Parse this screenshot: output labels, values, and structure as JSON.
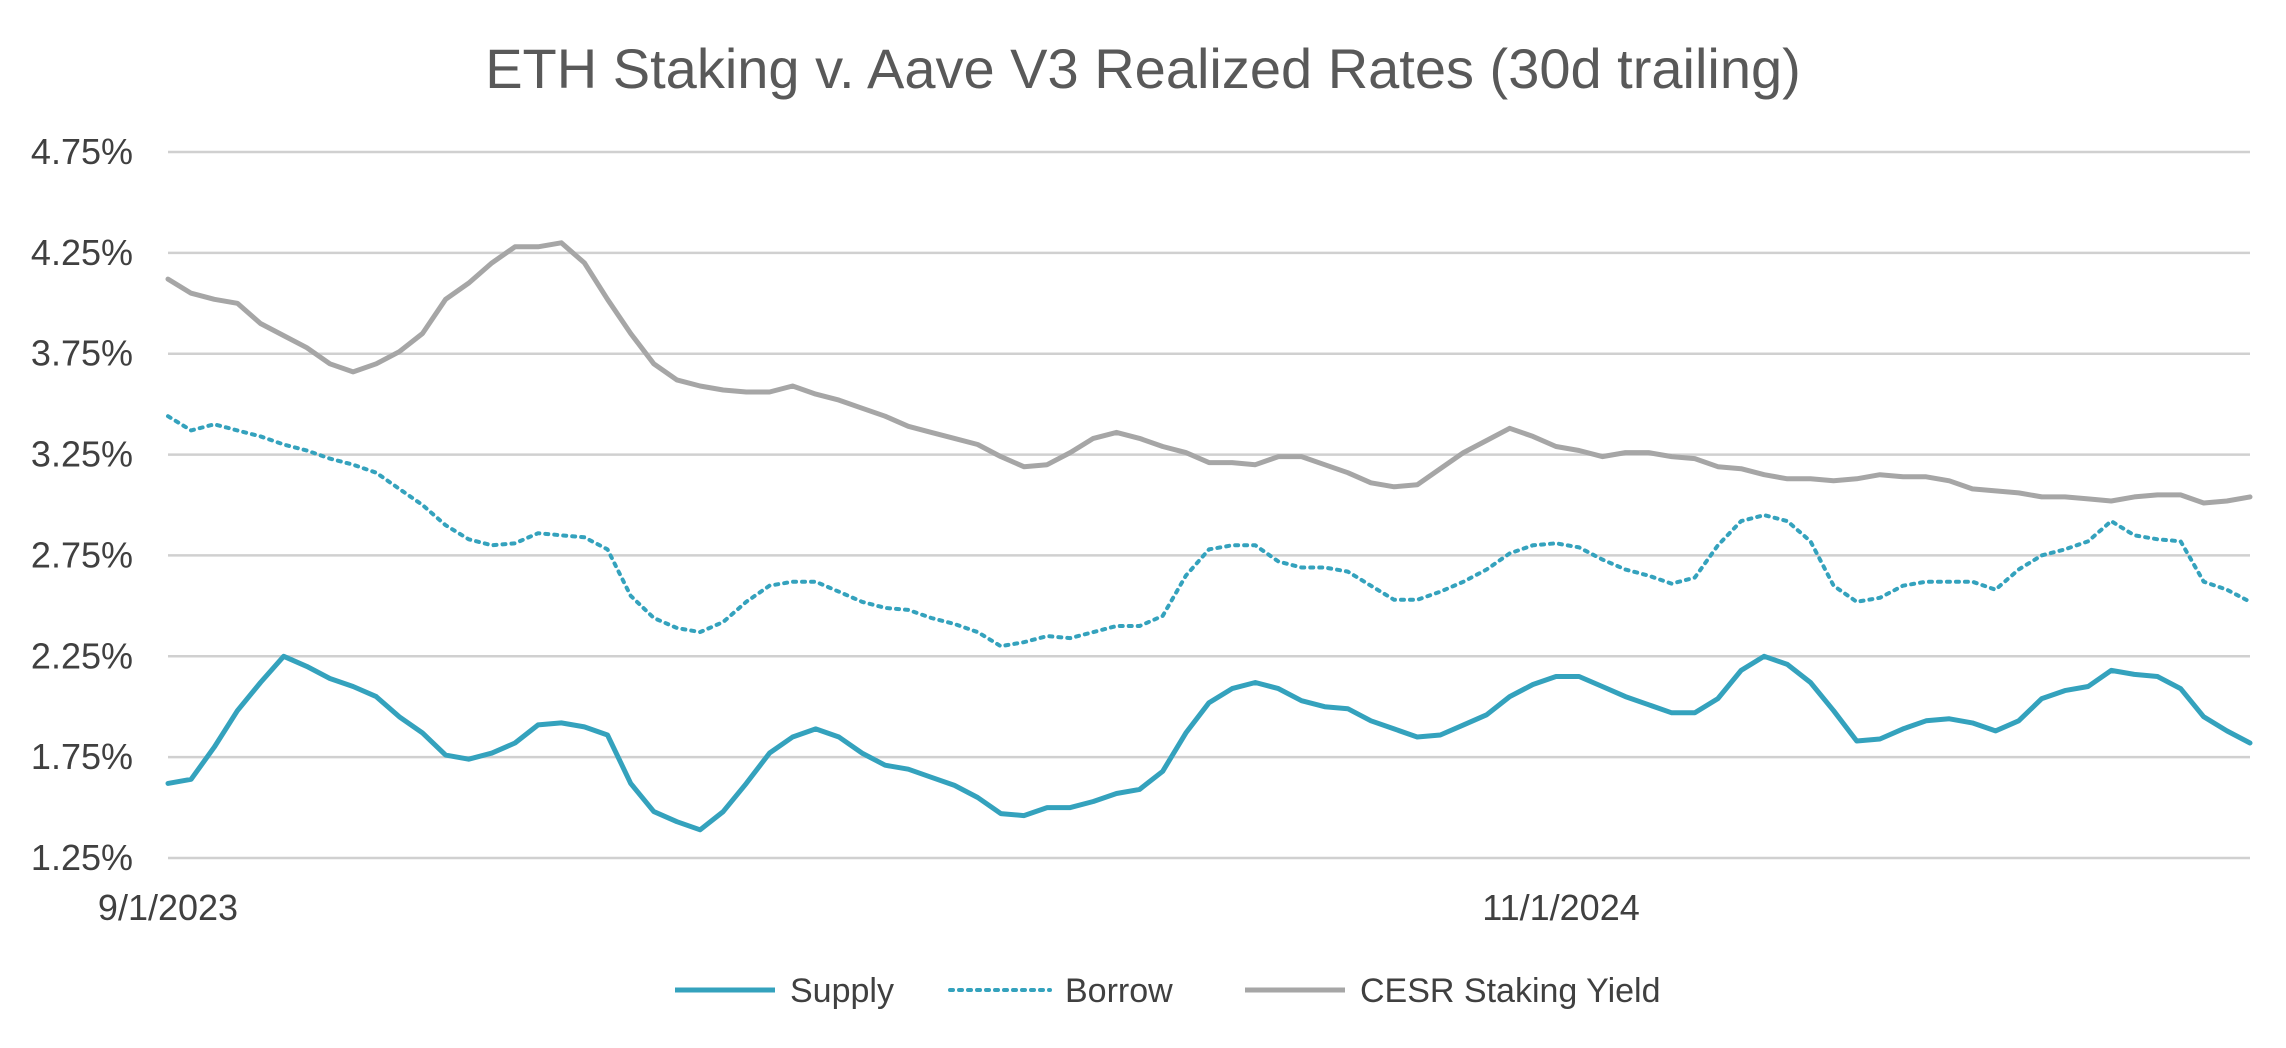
{
  "chart_data": {
    "type": "line",
    "title": "ETH Staking v. Aave V3 Realized Rates (30d trailing)",
    "xlabel": "",
    "ylabel": "",
    "x_start": "9/1/2023",
    "x_end": "2/28/2025",
    "x_tick_labels": [
      "9/1/2023",
      "11/1/2024"
    ],
    "ylim": [
      1.25,
      4.75
    ],
    "y_tick_values": [
      1.25,
      1.75,
      2.25,
      2.75,
      3.25,
      3.75,
      4.25,
      4.75
    ],
    "y_tick_labels": [
      "1.25%",
      "1.75%",
      "2.25%",
      "2.75%",
      "3.25%",
      "3.75%",
      "4.25%",
      "4.75%"
    ],
    "grid": true,
    "legend_position": "bottom",
    "series": [
      {
        "name": "Supply",
        "style": "solid",
        "color": "#34A2BD",
        "values": [
          1.62,
          1.64,
          1.8,
          1.98,
          2.12,
          2.25,
          2.2,
          2.14,
          2.1,
          2.05,
          1.95,
          1.87,
          1.76,
          1.74,
          1.77,
          1.82,
          1.91,
          1.92,
          1.9,
          1.86,
          1.62,
          1.48,
          1.43,
          1.39,
          1.48,
          1.62,
          1.77,
          1.85,
          1.89,
          1.85,
          1.77,
          1.71,
          1.69,
          1.65,
          1.61,
          1.55,
          1.47,
          1.46,
          1.5,
          1.5,
          1.53,
          1.57,
          1.59,
          1.68,
          1.87,
          2.02,
          2.09,
          2.12,
          2.09,
          2.03,
          2.0,
          1.99,
          1.93,
          1.89,
          1.85,
          1.86,
          1.91,
          1.96,
          2.05,
          2.11,
          2.15,
          2.15,
          2.1,
          2.05,
          2.01,
          1.97,
          1.97,
          2.04,
          2.18,
          2.25,
          2.21,
          2.12,
          1.98,
          1.83,
          1.84,
          1.89,
          1.93,
          1.94,
          1.92,
          1.88,
          1.93,
          2.04,
          2.08,
          2.1,
          2.18,
          2.16,
          2.15,
          2.09,
          1.95,
          1.88,
          1.82
        ]
      },
      {
        "name": "Borrow",
        "style": "dotted",
        "color": "#34A2BD",
        "values": [
          3.44,
          3.37,
          3.4,
          3.37,
          3.34,
          3.3,
          3.27,
          3.23,
          3.2,
          3.16,
          3.08,
          3.0,
          2.9,
          2.83,
          2.8,
          2.81,
          2.86,
          2.85,
          2.84,
          2.78,
          2.55,
          2.44,
          2.39,
          2.37,
          2.42,
          2.52,
          2.6,
          2.62,
          2.62,
          2.57,
          2.52,
          2.49,
          2.48,
          2.44,
          2.41,
          2.37,
          2.3,
          2.32,
          2.35,
          2.34,
          2.37,
          2.4,
          2.4,
          2.45,
          2.65,
          2.78,
          2.8,
          2.8,
          2.72,
          2.69,
          2.69,
          2.67,
          2.6,
          2.53,
          2.53,
          2.57,
          2.62,
          2.68,
          2.76,
          2.8,
          2.81,
          2.79,
          2.73,
          2.68,
          2.65,
          2.61,
          2.64,
          2.8,
          2.92,
          2.95,
          2.92,
          2.82,
          2.6,
          2.52,
          2.54,
          2.6,
          2.62,
          2.62,
          2.62,
          2.58,
          2.68,
          2.75,
          2.78,
          2.82,
          2.92,
          2.85,
          2.83,
          2.82,
          2.62,
          2.58,
          2.52
        ]
      },
      {
        "name": "CESR Staking Yield",
        "style": "solid",
        "color": "#A6A6A6",
        "values": [
          4.12,
          4.05,
          4.02,
          4.0,
          3.9,
          3.84,
          3.78,
          3.7,
          3.66,
          3.7,
          3.76,
          3.85,
          4.02,
          4.1,
          4.2,
          4.28,
          4.28,
          4.3,
          4.2,
          4.02,
          3.85,
          3.7,
          3.62,
          3.59,
          3.57,
          3.56,
          3.56,
          3.59,
          3.55,
          3.52,
          3.48,
          3.44,
          3.39,
          3.36,
          3.33,
          3.3,
          3.24,
          3.19,
          3.2,
          3.26,
          3.33,
          3.36,
          3.33,
          3.29,
          3.26,
          3.21,
          3.21,
          3.2,
          3.24,
          3.24,
          3.2,
          3.16,
          3.11,
          3.09,
          3.1,
          3.18,
          3.26,
          3.32,
          3.38,
          3.34,
          3.29,
          3.27,
          3.24,
          3.26,
          3.26,
          3.24,
          3.23,
          3.19,
          3.18,
          3.15,
          3.13,
          3.13,
          3.12,
          3.13,
          3.15,
          3.14,
          3.14,
          3.12,
          3.08,
          3.07,
          3.06,
          3.04,
          3.04,
          3.03,
          3.02,
          3.04,
          3.05,
          3.05,
          3.01,
          3.02,
          3.04
        ]
      }
    ]
  }
}
